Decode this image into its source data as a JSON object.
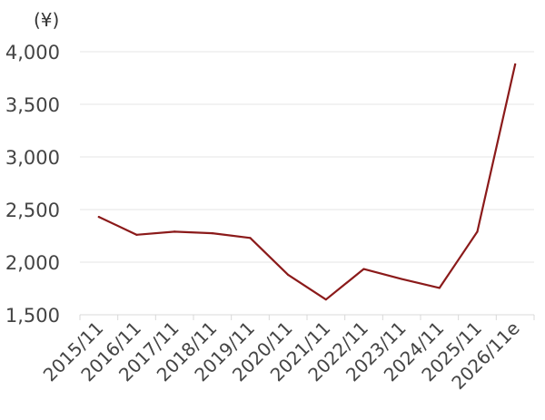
{
  "chart_data": {
    "type": "line",
    "unit_label": "(¥)",
    "categories": [
      "2015/11",
      "2016/11",
      "2017/11",
      "2018/11",
      "2019/11",
      "2020/11",
      "2021/11",
      "2022/11",
      "2023/11",
      "2024/11",
      "2025/11",
      "2026/11e"
    ],
    "series": [
      {
        "values": [
          2430,
          2260,
          2290,
          2275,
          2230,
          1880,
          1645,
          1935,
          1840,
          1755,
          2290,
          3880
        ]
      }
    ],
    "ylim": [
      1500,
      4000
    ],
    "yticks": [
      1500,
      2000,
      2500,
      3000,
      3500,
      4000
    ],
    "ytick_labels": [
      "1,500",
      "2,000",
      "2,500",
      "3,000",
      "3,500",
      "4,000"
    ],
    "grid": true,
    "colors": {
      "line": "#8b1a1a",
      "grid": "#e6e6e6",
      "axis": "#d9d9d9",
      "text": "#444444"
    }
  }
}
